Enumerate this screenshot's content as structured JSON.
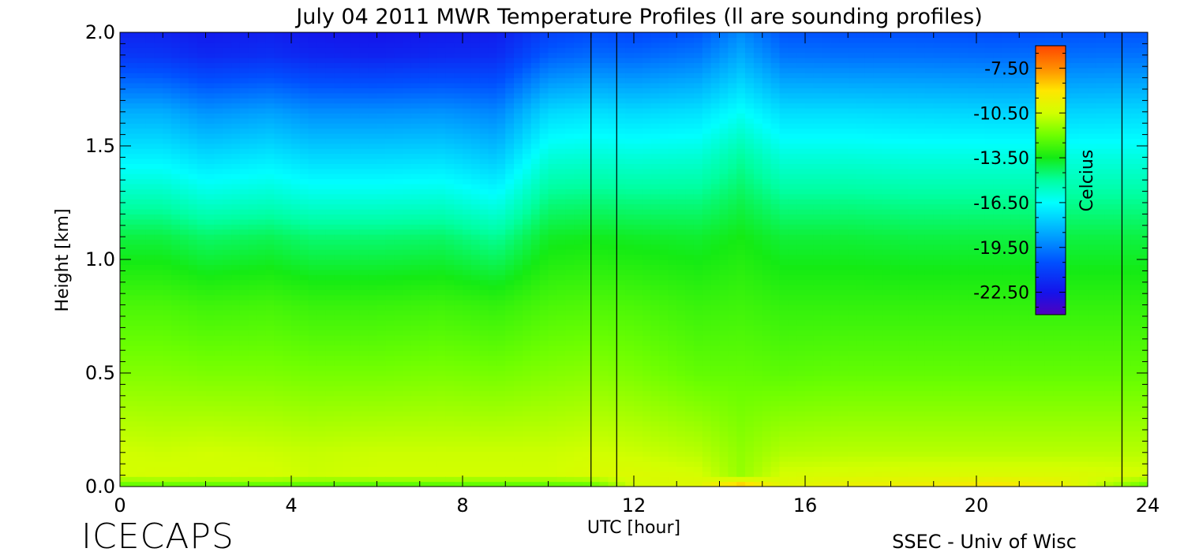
{
  "chart_data": {
    "type": "heatmap",
    "title": "July 04 2011 MWR Temperature Profiles (ll are sounding profiles)",
    "xlabel": "UTC [hour]",
    "ylabel": "Height [km]",
    "xlim": [
      0,
      24
    ],
    "ylim": [
      0.0,
      2.0
    ],
    "x_ticks": [
      "0",
      "4",
      "8",
      "12",
      "16",
      "20",
      "24"
    ],
    "y_ticks": [
      "0.0",
      "0.5",
      "1.0",
      "1.5",
      "2.0"
    ],
    "sounding_times_utc": [
      11.0,
      11.6,
      23.4
    ],
    "colorbar": {
      "label": "Celcius",
      "range": [
        -24.0,
        -6.0
      ],
      "ticks": [
        "-7.50",
        "-10.50",
        "-13.50",
        "-16.50",
        "-19.50",
        "-22.50"
      ],
      "placement": "inside-top-right"
    },
    "heights_km": [
      0.0,
      0.05,
      0.15,
      0.5,
      0.8,
      1.1,
      1.25,
      1.45,
      1.65,
      1.9,
      2.0
    ],
    "profiles": [
      {
        "time": 0.0,
        "temps": [
          -12.5,
          -10.5,
          -10.5,
          -11.7,
          -12.6,
          -14.0,
          -15.2,
          -16.8,
          -18.4,
          -21.3,
          -22.0
        ]
      },
      {
        "time": 1.0,
        "temps": [
          -12.5,
          -10.4,
          -10.6,
          -11.7,
          -12.6,
          -14.0,
          -15.2,
          -16.8,
          -18.4,
          -21.4,
          -22.0
        ]
      },
      {
        "time": 2.0,
        "temps": [
          -12.5,
          -10.5,
          -10.5,
          -11.8,
          -12.8,
          -14.4,
          -15.7,
          -17.3,
          -19.0,
          -21.8,
          -22.3
        ]
      },
      {
        "time": 3.5,
        "temps": [
          -12.6,
          -10.4,
          -10.6,
          -11.8,
          -12.7,
          -14.2,
          -15.5,
          -17.0,
          -18.7,
          -21.6,
          -22.1
        ]
      },
      {
        "time": 4.5,
        "temps": [
          -12.7,
          -10.6,
          -10.7,
          -11.9,
          -12.9,
          -14.5,
          -15.8,
          -17.4,
          -19.1,
          -21.9,
          -22.4
        ]
      },
      {
        "time": 6.0,
        "temps": [
          -12.8,
          -10.5,
          -10.6,
          -11.9,
          -12.9,
          -14.5,
          -15.8,
          -17.4,
          -19.1,
          -22.0,
          -22.5
        ]
      },
      {
        "time": 7.5,
        "temps": [
          -12.7,
          -10.5,
          -10.6,
          -11.8,
          -12.8,
          -14.4,
          -15.7,
          -17.3,
          -19.0,
          -21.8,
          -22.3
        ]
      },
      {
        "time": 8.8,
        "temps": [
          -12.6,
          -10.5,
          -10.6,
          -11.9,
          -13.0,
          -14.9,
          -16.2,
          -17.8,
          -19.3,
          -21.7,
          -22.2
        ]
      },
      {
        "time": 10.0,
        "temps": [
          -12.6,
          -10.5,
          -10.6,
          -11.7,
          -12.6,
          -13.7,
          -14.6,
          -15.9,
          -17.4,
          -20.2,
          -21.0
        ]
      },
      {
        "time": 11.0,
        "temps": [
          -12.5,
          -10.3,
          -10.5,
          -11.6,
          -12.5,
          -13.6,
          -14.5,
          -15.8,
          -17.2,
          -19.9,
          -20.6
        ]
      },
      {
        "time": 12.0,
        "temps": [
          -10.5,
          -10.2,
          -10.6,
          -11.8,
          -12.6,
          -13.7,
          -14.6,
          -15.9,
          -17.4,
          -20.0,
          -20.8
        ]
      },
      {
        "time": 13.5,
        "temps": [
          -10.0,
          -10.4,
          -10.9,
          -12.2,
          -12.9,
          -13.8,
          -14.6,
          -15.8,
          -17.2,
          -19.6,
          -20.4
        ]
      },
      {
        "time": 14.5,
        "temps": [
          -8.0,
          -11.4,
          -11.5,
          -12.2,
          -12.8,
          -13.5,
          -14.1,
          -15.0,
          -16.4,
          -18.5,
          -19.2
        ]
      },
      {
        "time": 15.5,
        "temps": [
          -10.0,
          -10.4,
          -11.0,
          -12.3,
          -13.0,
          -13.9,
          -14.7,
          -15.9,
          -17.3,
          -19.7,
          -20.4
        ]
      },
      {
        "time": 17.0,
        "temps": [
          -9.6,
          -10.3,
          -10.9,
          -12.2,
          -13.0,
          -13.9,
          -14.7,
          -15.9,
          -17.3,
          -19.8,
          -20.5
        ]
      },
      {
        "time": 18.5,
        "temps": [
          -9.5,
          -10.2,
          -10.9,
          -12.2,
          -13.0,
          -14.0,
          -14.8,
          -16.0,
          -17.4,
          -19.8,
          -20.5
        ]
      },
      {
        "time": 20.5,
        "temps": [
          -9.0,
          -10.2,
          -10.9,
          -12.2,
          -13.0,
          -14.0,
          -14.8,
          -16.0,
          -17.5,
          -19.9,
          -20.6
        ]
      },
      {
        "time": 22.0,
        "temps": [
          -9.6,
          -10.2,
          -10.9,
          -12.2,
          -13.0,
          -14.0,
          -14.8,
          -16.0,
          -17.5,
          -19.8,
          -20.5
        ]
      },
      {
        "time": 24.0,
        "temps": [
          -12.5,
          -10.4,
          -10.9,
          -12.2,
          -13.0,
          -14.0,
          -14.8,
          -16.0,
          -17.4,
          -19.7,
          -20.4
        ]
      }
    ]
  },
  "footer": {
    "brand": "ICECAPS",
    "credit": "SSEC - Univ of Wisc"
  }
}
